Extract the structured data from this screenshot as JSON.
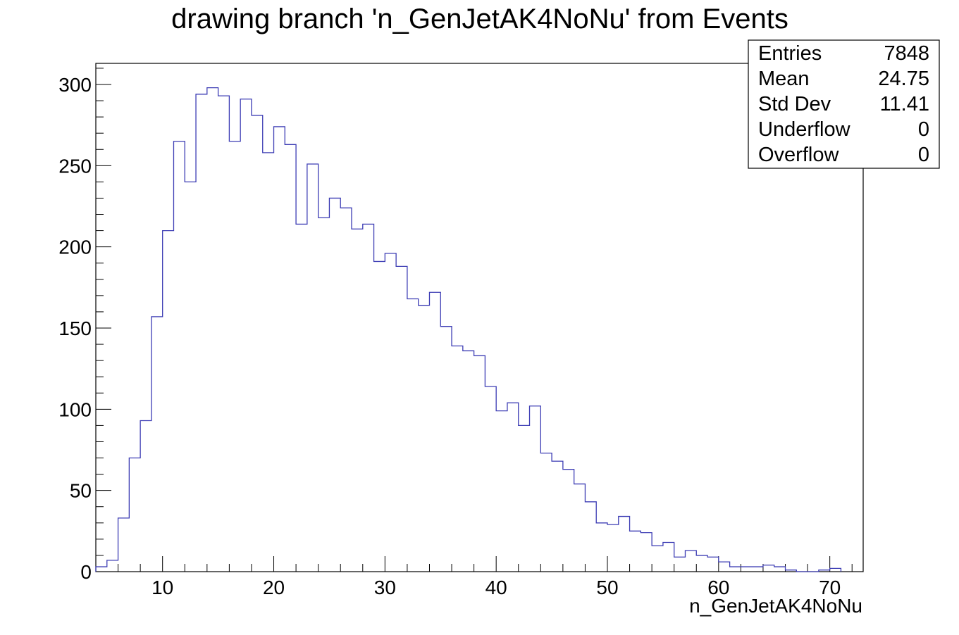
{
  "chart_data": {
    "type": "histogram",
    "title": "drawing branch 'n_GenJetAK4NoNu' from Events",
    "xlabel": "n_GenJetAK4NoNu",
    "ylabel": "",
    "xlim": [
      4,
      73
    ],
    "ylim": [
      0,
      313
    ],
    "x_ticks": [
      10,
      20,
      30,
      40,
      50,
      60,
      70
    ],
    "y_ticks": [
      0,
      50,
      100,
      150,
      200,
      250,
      300
    ],
    "grid": false,
    "line_color": "#3c3cb4",
    "bin_width": 1,
    "bin_start": 4,
    "counts": [
      3,
      7,
      33,
      70,
      93,
      157,
      210,
      265,
      240,
      294,
      298,
      293,
      265,
      291,
      281,
      258,
      274,
      263,
      214,
      251,
      218,
      230,
      224,
      211,
      214,
      191,
      196,
      188,
      168,
      164,
      172,
      151,
      139,
      136,
      133,
      114,
      99,
      104,
      90,
      102,
      73,
      68,
      63,
      54,
      43,
      30,
      29,
      34,
      25,
      24,
      16,
      18,
      9,
      13,
      10,
      9,
      6,
      3,
      3,
      3,
      4,
      3,
      1,
      0,
      0,
      1,
      2
    ],
    "stats": [
      {
        "label": "Entries",
        "value": "7848"
      },
      {
        "label": "Mean",
        "value": "24.75"
      },
      {
        "label": "Std Dev",
        "value": "11.41"
      },
      {
        "label": "Underflow",
        "value": "0"
      },
      {
        "label": "Overflow",
        "value": "0"
      }
    ]
  }
}
